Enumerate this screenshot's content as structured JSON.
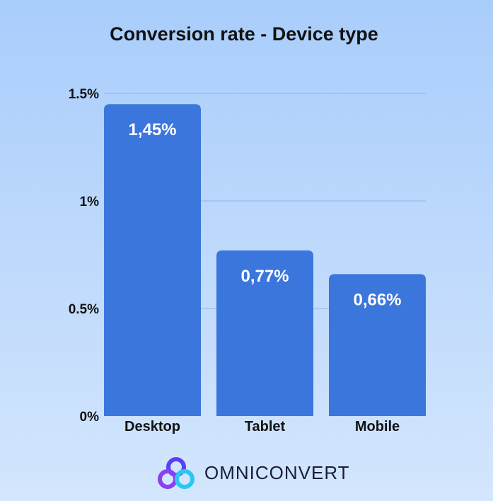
{
  "chart_data": {
    "type": "bar",
    "title": "Conversion rate - Device type",
    "xlabel": "",
    "ylabel": "",
    "categories": [
      "Desktop",
      "Tablet",
      "Mobile"
    ],
    "values": [
      1.45,
      0.77,
      0.66
    ],
    "value_labels": [
      "1,45%",
      "0,77%",
      "0,66%"
    ],
    "ylim": [
      0,
      1.5
    ],
    "yticks": [
      0,
      0.5,
      1,
      1.5
    ],
    "ytick_labels": [
      "0%",
      "0.5%",
      "1%",
      "1.5%"
    ],
    "grid": true,
    "legend": "none",
    "bar_color": "#3b76dc",
    "grid_color": "#8fb4ee"
  },
  "brand": {
    "name": "OMNICONVERT",
    "logo_icon": "omniconvert-logo-icon",
    "logo_colors": [
      "#5b3ff0",
      "#2cc6f4",
      "#8b3ff0"
    ]
  }
}
